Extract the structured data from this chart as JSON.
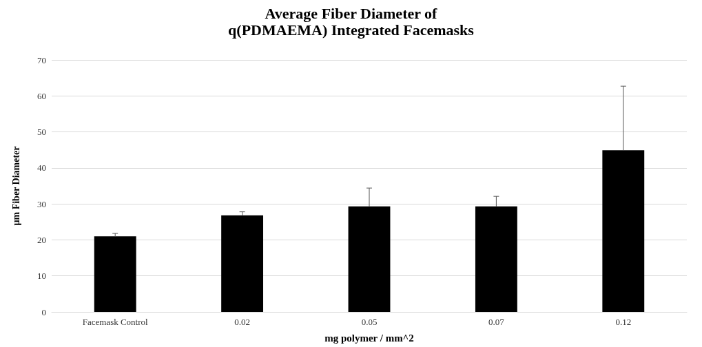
{
  "chart_data": {
    "type": "bar",
    "title": "Average Fiber Diameter of\nq(PDMAEMA) Integrated Facemasks",
    "xlabel": "mg polymer / mm^2",
    "ylabel": "µm Fiber Diameter",
    "categories": [
      "Facemask Control",
      "0.02",
      "0.05",
      "0.07",
      "0.12"
    ],
    "values": [
      21.0,
      26.8,
      29.3,
      29.3,
      44.9
    ],
    "errors": [
      [
        21.0,
        21.8
      ],
      [
        26.8,
        27.8
      ],
      [
        29.3,
        34.4
      ],
      [
        29.3,
        32.1
      ],
      [
        44.9,
        62.7
      ]
    ],
    "color": "#000000",
    "ylim": [
      0,
      70
    ],
    "yticks": [
      0,
      10,
      20,
      30,
      40,
      50,
      60,
      70
    ],
    "grid": "y"
  }
}
